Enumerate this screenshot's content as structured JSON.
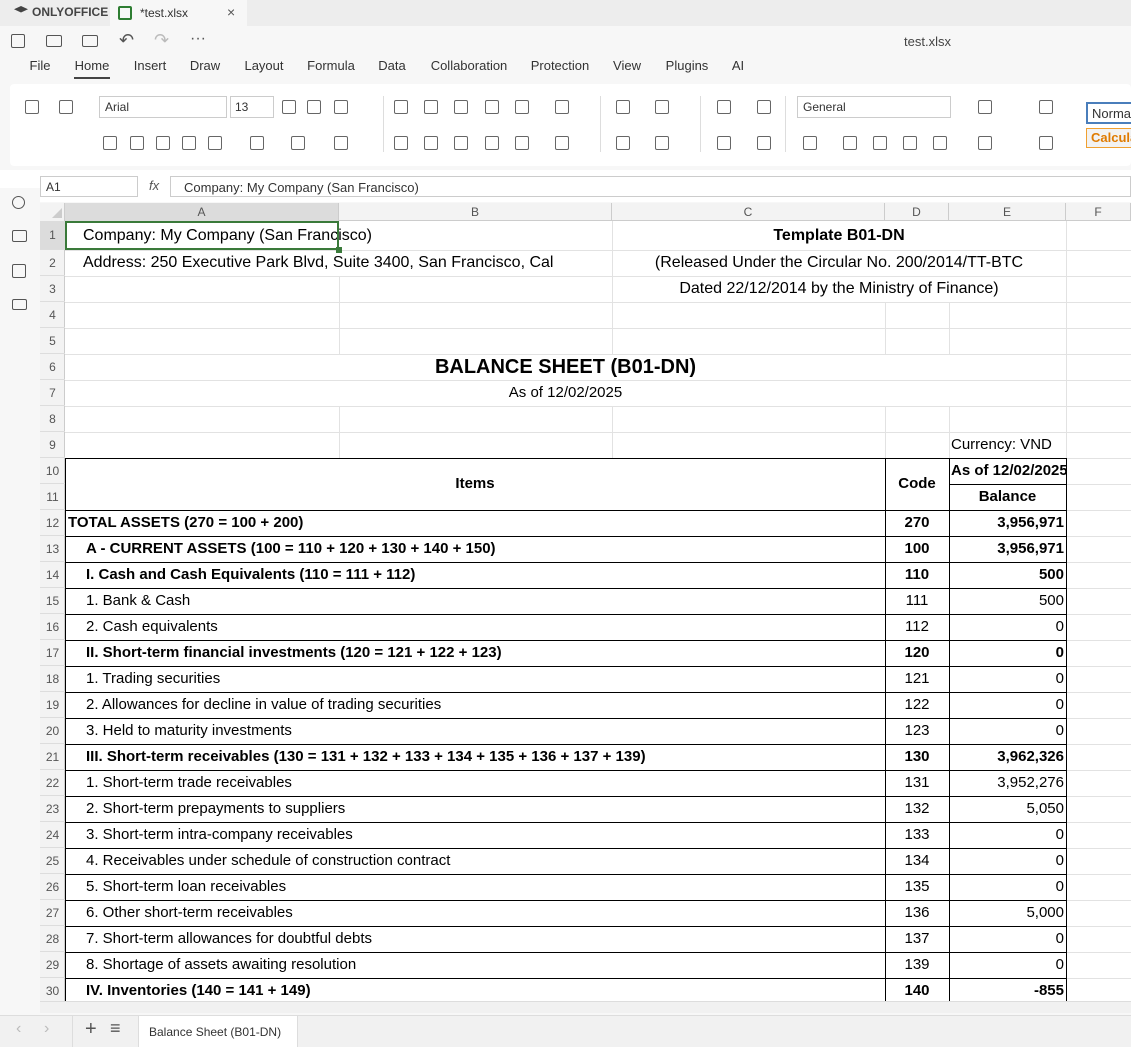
{
  "app": {
    "brand": "ONLYOFFICE",
    "doc_tab": "*test.xlsx",
    "file_name": "test.xlsx"
  },
  "menu": [
    "File",
    "Home",
    "Insert",
    "Draw",
    "Layout",
    "Formula",
    "Data",
    "Collaboration",
    "Protection",
    "View",
    "Plugins",
    "AI"
  ],
  "toolbar": {
    "font": "Arial",
    "font_size": "13",
    "number_format": "General",
    "styles": [
      "Norma",
      "Calcula"
    ]
  },
  "formula_bar": {
    "cell": "A1",
    "fx": "fx",
    "content": "Company: My Company (San Francisco)"
  },
  "columns": [
    "A",
    "B",
    "C",
    "D",
    "E",
    "F"
  ],
  "row_numbers": [
    1,
    2,
    3,
    4,
    5,
    6,
    7,
    8,
    9,
    10,
    11,
    12,
    13,
    14,
    15,
    16,
    17,
    18,
    19,
    20,
    21,
    22,
    23,
    24,
    25,
    26,
    27,
    28,
    29,
    30
  ],
  "header": {
    "company": "Company: My Company (San Francisco)",
    "address": "Address: 250 Executive Park Blvd, Suite 3400, San Francisco, Cal",
    "template": "Template B01-DN",
    "circular": "(Released Under the Circular No. 200/2014/TT-BTC",
    "dated": "Dated 22/12/2014 by the Ministry of Finance)",
    "title": "BALANCE SHEET (B01-DN)",
    "date": "As of 12/02/2025",
    "currency": "Currency: VND"
  },
  "table": {
    "headers": {
      "items": "Items",
      "code": "Code",
      "period": "As of 12/02/2025",
      "balance": "Balance"
    },
    "rows": [
      {
        "item": "TOTAL ASSETS (270 = 100 + 200)",
        "code": "270",
        "balance": "3,956,971",
        "bold": true
      },
      {
        "item": "A - CURRENT ASSETS (100 = 110 + 120 + 130 + 140 + 150)",
        "code": "100",
        "balance": "3,956,971",
        "bold": true
      },
      {
        "item": "I. Cash and Cash Equivalents (110 = 111 + 112)",
        "code": "110",
        "balance": "500",
        "bold": true
      },
      {
        "item": "1. Bank & Cash",
        "code": "111",
        "balance": "500",
        "bold": false
      },
      {
        "item": "2. Cash equivalents",
        "code": "112",
        "balance": "0",
        "bold": false
      },
      {
        "item": "II. Short-term financial investments (120 = 121 + 122 + 123)",
        "code": "120",
        "balance": "0",
        "bold": true
      },
      {
        "item": "1. Trading securities",
        "code": "121",
        "balance": "0",
        "bold": false
      },
      {
        "item": "2. Allowances for decline in value of trading securities",
        "code": "122",
        "balance": "0",
        "bold": false
      },
      {
        "item": "3. Held to maturity investments",
        "code": "123",
        "balance": "0",
        "bold": false
      },
      {
        "item": "III. Short-term receivables (130 = 131 + 132 + 133 + 134 + 135 + 136 + 137 + 139)",
        "code": "130",
        "balance": "3,962,326",
        "bold": true
      },
      {
        "item": "1. Short-term trade receivables",
        "code": "131",
        "balance": "3,952,276",
        "bold": false
      },
      {
        "item": "2. Short-term prepayments to suppliers",
        "code": "132",
        "balance": "5,050",
        "bold": false
      },
      {
        "item": "3. Short-term intra-company receivables",
        "code": "133",
        "balance": "0",
        "bold": false
      },
      {
        "item": "4. Receivables under schedule of construction contract",
        "code": "134",
        "balance": "0",
        "bold": false
      },
      {
        "item": "5. Short-term loan receivables",
        "code": "135",
        "balance": "0",
        "bold": false
      },
      {
        "item": "6. Other short-term receivables",
        "code": "136",
        "balance": "5,000",
        "bold": false
      },
      {
        "item": "7. Short-term allowances for doubtful debts",
        "code": "137",
        "balance": "0",
        "bold": false
      },
      {
        "item": "8. Shortage of assets awaiting resolution",
        "code": "139",
        "balance": "0",
        "bold": false
      },
      {
        "item": "IV. Inventories (140 = 141 + 149)",
        "code": "140",
        "balance": "-855",
        "bold": true
      }
    ]
  },
  "sheet_tab": "Balance Sheet (B01-DN)"
}
